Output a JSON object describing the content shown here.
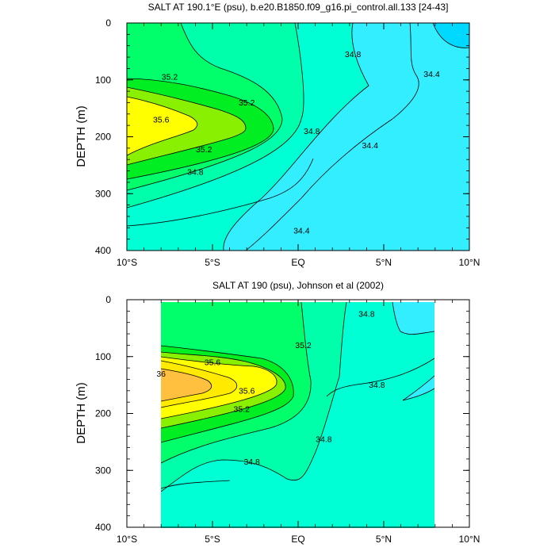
{
  "chart_data": [
    {
      "type": "contour",
      "title": "SALT AT 190.1°E (psu), b.e20.B1850.f09_g16.pi_control.all.133 [24-43]",
      "ylabel": "DEPTH (m)",
      "xlabel": "",
      "x_ticks": [
        "10°S",
        "5°S",
        "EQ",
        "5°N",
        "10°N"
      ],
      "y_ticks": [
        "0",
        "100",
        "200",
        "300",
        "400"
      ],
      "xlim": [
        -10,
        10
      ],
      "ylim": [
        400,
        0
      ],
      "y_axis_inverted": true,
      "grid": false,
      "contour_levels": [
        34.2,
        34.4,
        34.6,
        34.8,
        35.0,
        35.2,
        35.4,
        35.6
      ],
      "fill_colors": [
        "#00d9ff",
        "#33eeff",
        "#00ffd5",
        "#00ffaa",
        "#00ff6a",
        "#00ee22",
        "#88f000",
        "#ffff00"
      ],
      "contour_labels": [
        {
          "text": "35.2",
          "lon": -7.5,
          "depth": 95
        },
        {
          "text": "35.2",
          "lon": -3.0,
          "depth": 140
        },
        {
          "text": "35.6",
          "lon": -8.0,
          "depth": 170
        },
        {
          "text": "35.2",
          "lon": -5.5,
          "depth": 222
        },
        {
          "text": "34.8",
          "lon": -6.0,
          "depth": 262
        },
        {
          "text": "34.8",
          "lon": 3.2,
          "depth": 55
        },
        {
          "text": "34.8",
          "lon": 0.8,
          "depth": 190
        },
        {
          "text": "34.4",
          "lon": 7.8,
          "depth": 90
        },
        {
          "text": "34.4",
          "lon": 4.2,
          "depth": 215
        },
        {
          "text": "34.4",
          "lon": 0.2,
          "depth": 365
        }
      ]
    },
    {
      "type": "contour",
      "title": "SALT AT 190 (psu), Johnson et al (2002)",
      "ylabel": "DEPTH (m)",
      "xlabel": "",
      "x_ticks": [
        "10°S",
        "5°S",
        "EQ",
        "5°N",
        "10°N"
      ],
      "y_ticks": [
        "0",
        "100",
        "200",
        "300",
        "400"
      ],
      "xlim": [
        -10,
        10
      ],
      "ylim": [
        400,
        0
      ],
      "y_axis_inverted": true,
      "data_extent_lon": [
        -8,
        8
      ],
      "data_extent_depth": [
        0,
        400
      ],
      "grid": false,
      "contour_levels": [
        34.6,
        34.8,
        35.0,
        35.2,
        35.4,
        35.6,
        35.8,
        36.0
      ],
      "fill_colors": [
        "#00ffd5",
        "#00ffaa",
        "#00ff6a",
        "#00ee22",
        "#88f000",
        "#ffff00",
        "#ffea00",
        "#ffc040"
      ],
      "contour_labels": [
        {
          "text": "36",
          "lon": -8.0,
          "depth": 130
        },
        {
          "text": "35.6",
          "lon": -5.0,
          "depth": 110
        },
        {
          "text": "35.6",
          "lon": -3.0,
          "depth": 160
        },
        {
          "text": "35.2",
          "lon": -3.3,
          "depth": 192
        },
        {
          "text": "35.2",
          "lon": 0.3,
          "depth": 80
        },
        {
          "text": "34.8",
          "lon": 4.0,
          "depth": 25
        },
        {
          "text": "34.8",
          "lon": 4.6,
          "depth": 150
        },
        {
          "text": "34.8",
          "lon": 1.5,
          "depth": 245
        },
        {
          "text": "34.8",
          "lon": -2.7,
          "depth": 285
        }
      ]
    }
  ]
}
